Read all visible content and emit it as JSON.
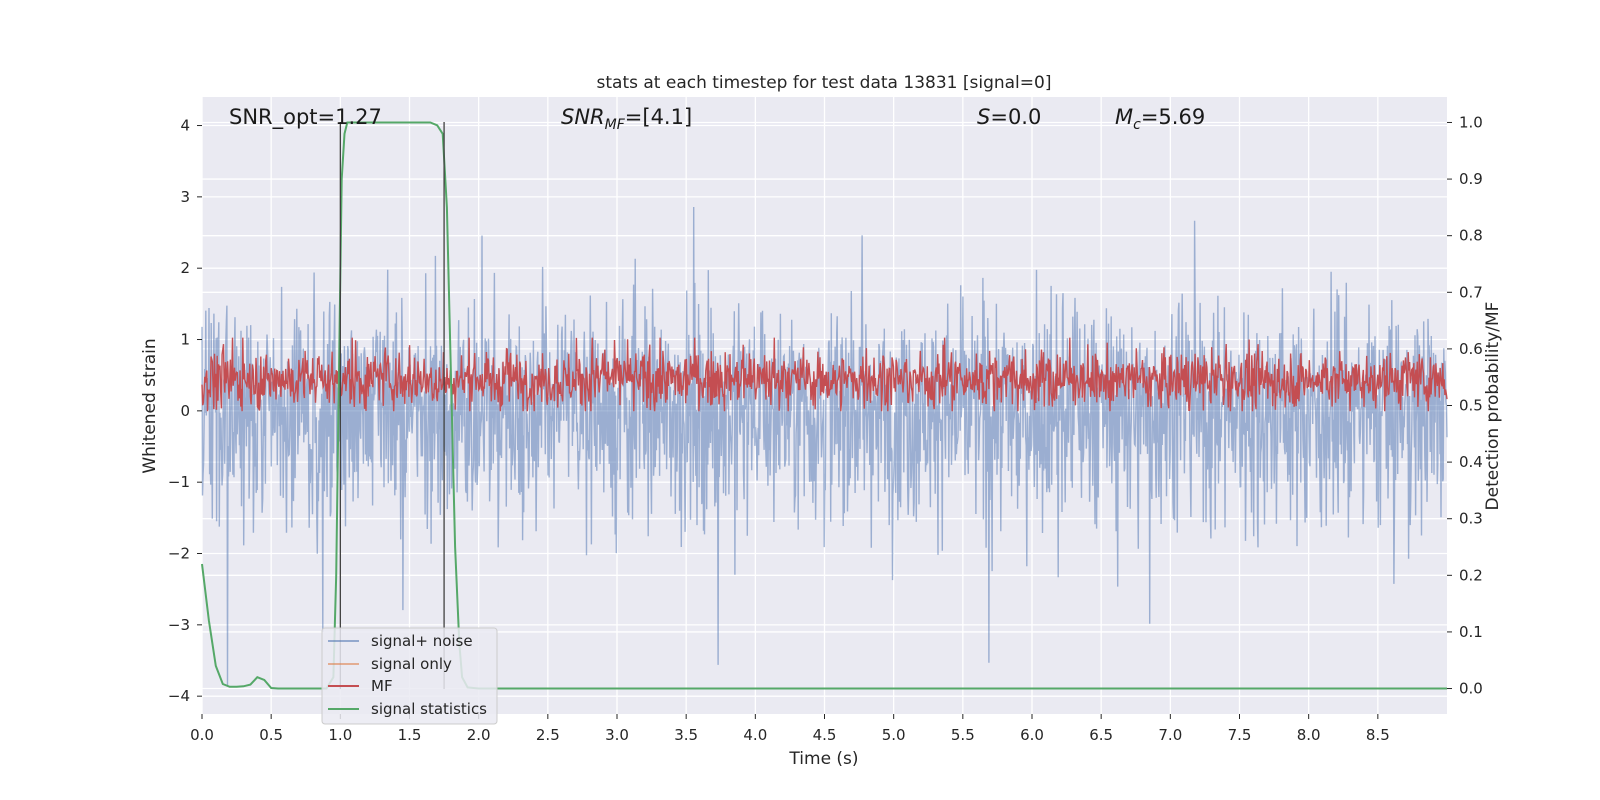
{
  "chart_data": {
    "type": "line",
    "title": "stats at each timestep for test data 13831 [signal=0]",
    "xlabel": "Time (s)",
    "ylabel": "Whitened strain",
    "ylabel_right": "Detection probability/MF",
    "xlim": [
      0.0,
      9.0
    ],
    "ylim": [
      -4.25,
      4.4
    ],
    "ylim_right": [
      -0.045,
      1.045
    ],
    "xticks": [
      "0.0",
      "0.5",
      "1.0",
      "1.5",
      "2.0",
      "2.5",
      "3.0",
      "3.5",
      "4.0",
      "4.5",
      "5.0",
      "5.5",
      "6.0",
      "6.5",
      "7.0",
      "7.5",
      "8.0",
      "8.5"
    ],
    "yticks": [
      "4",
      "3",
      "2",
      "1",
      "0",
      "−1",
      "−2",
      "−3",
      "−4"
    ],
    "yticks_right": [
      "1.0",
      "0.9",
      "0.8",
      "0.7",
      "0.6",
      "0.5",
      "0.4",
      "0.3",
      "0.2",
      "0.1",
      "0.0"
    ],
    "annotations": {
      "snr_opt": "SNR_opt=1.27",
      "snr_mf_base": "SNR",
      "snr_mf_sub": "MF",
      "snr_mf_value": "=[4.1]",
      "s_label": "S",
      "s_value": "=0.0",
      "mc_base": "M",
      "mc_sub": "c",
      "mc_value": "=5.69"
    },
    "vertical_lines_x": [
      1.0,
      1.75
    ],
    "legend": [
      "signal+ noise",
      "signal only",
      "MF",
      "signal statistics"
    ],
    "legend_position": "lower-left",
    "colors": {
      "noise": "#4c72b0",
      "signal_only": "#dd8452",
      "mf": "#c44e52",
      "stat": "#55a868",
      "axes_bg": "#eaeaf2",
      "grid": "#ffffff",
      "vline": "#404040"
    },
    "series": [
      {
        "name": "signal+ noise",
        "axis": "left",
        "description": "whitened noise, approx ±2 typical with spikes to ~4"
      },
      {
        "name": "signal only",
        "axis": "left",
        "values": []
      },
      {
        "name": "MF",
        "axis": "right",
        "description": "matched-filter output, approx 0.5–0.6"
      },
      {
        "name": "signal statistics",
        "axis": "right",
        "x": [
          0.0,
          0.05,
          0.1,
          0.15,
          0.2,
          0.25,
          0.3,
          0.35,
          0.4,
          0.45,
          0.5,
          0.55,
          0.6,
          0.7,
          0.8,
          0.9,
          0.95,
          0.97,
          0.99,
          1.01,
          1.03,
          1.05,
          1.08,
          1.15,
          1.3,
          1.5,
          1.6,
          1.65,
          1.7,
          1.74,
          1.77,
          1.8,
          1.83,
          1.86,
          1.88,
          1.92,
          2.0,
          2.2,
          2.5,
          3.0,
          4.0,
          5.0,
          6.0,
          7.0,
          8.0,
          9.0
        ],
        "values": [
          0.22,
          0.12,
          0.04,
          0.008,
          0.003,
          0.003,
          0.004,
          0.007,
          0.02,
          0.015,
          0.001,
          0.0,
          0.0,
          0.0,
          0.0,
          0.0,
          0.02,
          0.2,
          0.55,
          0.9,
          0.98,
          1.0,
          1.0,
          1.0,
          1.0,
          1.0,
          1.0,
          1.0,
          0.995,
          0.98,
          0.85,
          0.55,
          0.25,
          0.08,
          0.02,
          0.002,
          0.0,
          0.0,
          0.0,
          0.0,
          0.0,
          0.0,
          0.0,
          0.0,
          0.0,
          0.0
        ]
      }
    ]
  }
}
